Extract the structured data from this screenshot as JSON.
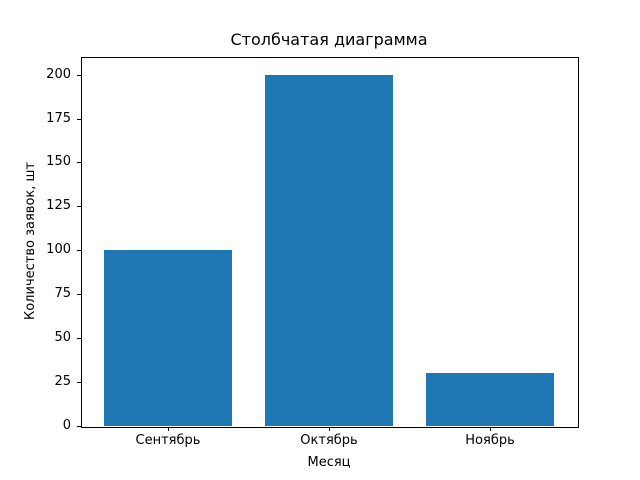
{
  "figure": {
    "background": "#ffffff",
    "text_color": "#000000"
  },
  "chart_data": {
    "type": "bar",
    "title": "Столбчатая диаграмма",
    "xlabel": "Месяц",
    "ylabel": "Количество заявок, шт",
    "categories": [
      "Сентябрь",
      "Октябрь",
      "Ноябрь"
    ],
    "values": [
      100,
      200,
      30
    ],
    "bar_color": "#1f77b4",
    "bar_width": 0.8,
    "yticks": [
      0,
      25,
      50,
      75,
      100,
      125,
      150,
      175,
      200
    ],
    "ylim": [
      0,
      210
    ],
    "xlim": [
      -0.54,
      2.54
    ],
    "grid": false,
    "legend_visible": false
  }
}
